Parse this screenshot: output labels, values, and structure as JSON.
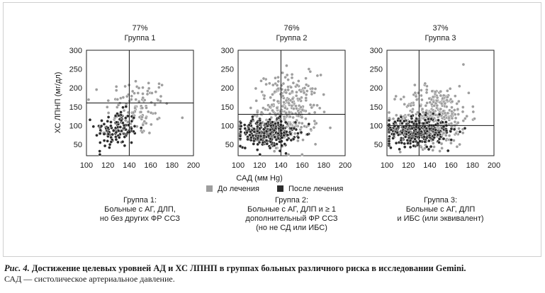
{
  "figure": {
    "y_axis_label": "ХС ЛПНП (мг/дл)",
    "x_axis_label": "САД (мм Hg)",
    "legend": {
      "before": {
        "label": "До лечения",
        "color": "#9e9e9e"
      },
      "after": {
        "label": "После лечения",
        "color": "#2b2b2b"
      }
    }
  },
  "chart_data": [
    {
      "type": "scatter",
      "title": "Группа 1",
      "percent": "77%",
      "xlim": [
        100,
        200
      ],
      "ylim": [
        20,
        300
      ],
      "xticks": [
        100,
        120,
        140,
        160,
        180,
        200
      ],
      "yticks": [
        50,
        100,
        150,
        200,
        250,
        300
      ],
      "target_sbp": 140,
      "target_ldl": 160,
      "before": {
        "center": [
          148,
          150
        ],
        "spread": [
          15,
          40
        ],
        "count": 110
      },
      "after": {
        "center": [
          128,
          90
        ],
        "spread": [
          10,
          25
        ],
        "count": 130
      },
      "description": [
        "Группа 1:",
        "Больные с АГ, ДЛП,",
        "но без других ФР ССЗ"
      ]
    },
    {
      "type": "scatter",
      "title": "Группа 2",
      "percent": "76%",
      "xlim": [
        100,
        200
      ],
      "ylim": [
        20,
        300
      ],
      "xticks": [
        100,
        120,
        140,
        160,
        180,
        200
      ],
      "yticks": [
        50,
        100,
        150,
        200,
        250,
        300
      ],
      "target_sbp": 140,
      "target_ldl": 130,
      "before": {
        "center": [
          147,
          145
        ],
        "spread": [
          14,
          45
        ],
        "count": 300
      },
      "after": {
        "center": [
          127,
          80
        ],
        "spread": [
          13,
          18
        ],
        "count": 320
      },
      "description": [
        "Группа 2:",
        "Больные с АГ, ДЛП и ≥ 1",
        "дополнительный ФР ССЗ",
        "(но не СД или ИБС)"
      ]
    },
    {
      "type": "scatter",
      "title": "Группа 3",
      "percent": "37%",
      "xlim": [
        100,
        200
      ],
      "ylim": [
        20,
        300
      ],
      "xticks": [
        100,
        120,
        140,
        160,
        180,
        200
      ],
      "yticks": [
        50,
        100,
        150,
        200,
        250,
        300
      ],
      "target_sbp": 130,
      "target_ldl": 100,
      "before": {
        "center": [
          145,
          125
        ],
        "spread": [
          16,
          40
        ],
        "count": 380
      },
      "after": {
        "center": [
          128,
          85
        ],
        "spread": [
          14,
          18
        ],
        "count": 360
      },
      "description": [
        "Группа 3:",
        "Больные с АГ, ДЛП",
        "и ИБС (или эквивалент)"
      ]
    }
  ],
  "caption": {
    "label": "Рис. 4.",
    "text": "Достижение целевых уровней АД и ХС ЛПНП в группах больных различного риска в исследовании Gemini.",
    "note": "САД — систолическое артериальное давление."
  }
}
